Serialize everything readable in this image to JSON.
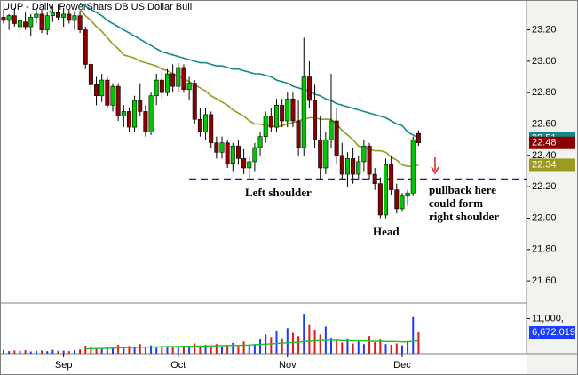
{
  "chart_data": {
    "type": "candlestick",
    "title": "UUP - Daily  PowerShars DB US Dollar Bull",
    "categories": [
      null,
      null,
      null,
      null,
      null,
      null,
      null,
      null,
      null,
      null,
      null,
      "Sep",
      null,
      null,
      null,
      null,
      null,
      null,
      null,
      null,
      null,
      null,
      null,
      null,
      null,
      null,
      null,
      null,
      null,
      null,
      null,
      null,
      "Oct",
      null,
      null,
      null,
      null,
      null,
      null,
      null,
      null,
      null,
      null,
      null,
      null,
      null,
      null,
      null,
      null,
      null,
      null,
      null,
      "Nov",
      null,
      null,
      null,
      null,
      null,
      null,
      null,
      null,
      null,
      null,
      null,
      null,
      null,
      null,
      null,
      null,
      null,
      null,
      null,
      null,
      "Dec",
      null,
      null,
      null
    ],
    "open": [
      23.28,
      23.26,
      23.29,
      23.22,
      23.25,
      23.22,
      23.28,
      23.3,
      23.2,
      23.29,
      23.31,
      23.28,
      23.3,
      23.26,
      23.29,
      23.2,
      22.98,
      22.85,
      22.78,
      22.88,
      22.72,
      22.84,
      22.65,
      22.68,
      22.58,
      22.75,
      22.68,
      22.55,
      22.78,
      22.88,
      22.8,
      22.92,
      22.84,
      22.96,
      22.82,
      22.86,
      22.63,
      22.55,
      22.66,
      22.48,
      22.42,
      22.48,
      22.35,
      22.46,
      22.38,
      22.32,
      22.36,
      22.45,
      22.52,
      22.65,
      22.58,
      22.72,
      22.62,
      22.76,
      22.62,
      22.45,
      22.9,
      22.75,
      22.5,
      22.32,
      22.5,
      22.62,
      22.4,
      22.28,
      22.38,
      22.28,
      22.36,
      22.46,
      22.28,
      22.22,
      22.02,
      22.34,
      22.18,
      22.06,
      22.14,
      22.16,
      22.54
    ],
    "high": [
      23.33,
      23.3,
      23.34,
      23.28,
      23.31,
      23.3,
      23.34,
      23.33,
      23.31,
      23.35,
      23.36,
      23.34,
      23.33,
      23.32,
      23.32,
      23.22,
      23.02,
      22.9,
      22.92,
      22.9,
      22.86,
      22.86,
      22.72,
      22.7,
      22.78,
      22.86,
      22.72,
      22.8,
      22.92,
      22.94,
      22.95,
      22.98,
      22.99,
      22.98,
      22.9,
      22.88,
      22.7,
      22.7,
      22.68,
      22.52,
      22.52,
      22.5,
      22.48,
      22.5,
      22.44,
      22.4,
      22.48,
      22.55,
      22.68,
      22.7,
      22.76,
      22.76,
      22.8,
      22.8,
      22.75,
      23.15,
      23.0,
      22.85,
      22.65,
      22.55,
      22.92,
      22.7,
      22.48,
      22.42,
      22.45,
      22.4,
      22.5,
      22.48,
      22.32,
      22.26,
      22.38,
      22.4,
      22.22,
      22.16,
      22.18,
      22.52,
      22.56
    ],
    "low": [
      23.24,
      23.2,
      23.22,
      23.15,
      23.2,
      23.16,
      23.24,
      23.18,
      23.17,
      23.25,
      23.26,
      23.22,
      23.24,
      23.2,
      23.18,
      22.95,
      22.8,
      22.72,
      22.74,
      22.7,
      22.68,
      22.62,
      22.58,
      22.55,
      22.55,
      22.65,
      22.52,
      22.53,
      22.72,
      22.76,
      22.78,
      22.8,
      22.8,
      22.8,
      22.75,
      22.6,
      22.52,
      22.5,
      22.45,
      22.38,
      22.38,
      22.32,
      22.3,
      22.34,
      22.28,
      22.25,
      22.3,
      22.4,
      22.48,
      22.55,
      22.55,
      22.58,
      22.58,
      22.58,
      22.4,
      22.4,
      22.7,
      22.45,
      22.25,
      22.28,
      22.45,
      22.35,
      22.25,
      22.2,
      22.22,
      22.24,
      22.3,
      22.25,
      22.18,
      22.0,
      22.0,
      22.15,
      22.03,
      22.04,
      22.08,
      22.14,
      22.46
    ],
    "close": [
      23.26,
      23.29,
      23.24,
      23.26,
      23.22,
      23.28,
      23.3,
      23.2,
      23.29,
      23.31,
      23.28,
      23.3,
      23.26,
      23.29,
      23.2,
      22.98,
      22.85,
      22.78,
      22.88,
      22.72,
      22.84,
      22.65,
      22.68,
      22.58,
      22.75,
      22.68,
      22.55,
      22.78,
      22.88,
      22.8,
      22.92,
      22.84,
      22.96,
      22.82,
      22.86,
      22.63,
      22.55,
      22.66,
      22.48,
      22.42,
      22.48,
      22.35,
      22.46,
      22.38,
      22.32,
      22.36,
      22.45,
      22.52,
      22.65,
      22.58,
      22.72,
      22.62,
      22.76,
      22.62,
      22.45,
      22.9,
      22.75,
      22.5,
      22.32,
      22.5,
      22.62,
      22.4,
      22.28,
      22.38,
      22.28,
      22.36,
      22.46,
      22.28,
      22.22,
      22.02,
      22.34,
      22.18,
      22.06,
      22.14,
      22.16,
      22.5,
      22.48
    ],
    "close_last_label": "22.48",
    "up_color": "#00c800",
    "down_color": "#8b0000",
    "ylim": [
      21.465,
      23.39
    ],
    "yticks": [
      {
        "value": 21.6,
        "label": "21.60"
      },
      {
        "value": 21.8,
        "label": "21.80"
      },
      {
        "value": 22.0,
        "label": "22.00"
      },
      {
        "value": 22.2,
        "label": "22.20"
      },
      {
        "value": 22.4,
        "label": "22.40"
      },
      {
        "value": 22.6,
        "label": "22.60"
      },
      {
        "value": 22.8,
        "label": "22.80"
      },
      {
        "value": 23.0,
        "label": "23.00"
      },
      {
        "value": 23.2,
        "label": "23.20"
      }
    ],
    "moving_averages": [
      {
        "color": "#17888a",
        "last_label": "22.51",
        "values": [
          null,
          null,
          null,
          null,
          null,
          null,
          null,
          null,
          null,
          null,
          null,
          null,
          null,
          null,
          23.37,
          23.35,
          23.33,
          23.31,
          23.29,
          23.26,
          23.24,
          23.22,
          23.2,
          23.18,
          23.16,
          23.14,
          23.12,
          23.1,
          23.08,
          23.06,
          23.05,
          23.04,
          23.03,
          23.02,
          23.01,
          23.0,
          22.99,
          22.99,
          22.98,
          22.97,
          22.97,
          22.96,
          22.95,
          22.95,
          22.94,
          22.93,
          22.92,
          22.92,
          22.91,
          22.9,
          22.88,
          22.87,
          22.86,
          22.84,
          22.83,
          22.82,
          22.81,
          22.79,
          22.78,
          22.76,
          22.75,
          22.73,
          22.72,
          22.71,
          22.7,
          22.69,
          22.68,
          22.67,
          22.66,
          22.65,
          22.64,
          22.62,
          22.6,
          22.59,
          22.55,
          22.53,
          22.51
        ]
      },
      {
        "color": "#9a9a1e",
        "last_label": "22.34",
        "values": [
          null,
          null,
          null,
          null,
          null,
          null,
          null,
          null,
          null,
          null,
          null,
          null,
          null,
          null,
          23.33,
          23.29,
          23.26,
          23.22,
          23.19,
          23.15,
          23.11,
          23.08,
          23.04,
          23.03,
          23.02,
          23.0,
          22.99,
          22.98,
          22.97,
          22.95,
          22.94,
          22.92,
          22.9,
          22.89,
          22.87,
          22.85,
          22.83,
          22.81,
          22.78,
          22.76,
          22.74,
          22.72,
          22.69,
          22.67,
          22.65,
          22.62,
          22.6,
          22.6,
          22.59,
          22.59,
          22.58,
          22.59,
          22.6,
          22.61,
          22.62,
          22.63,
          22.64,
          22.64,
          22.63,
          22.63,
          22.63,
          22.6,
          22.56,
          22.53,
          22.5,
          22.46,
          22.45,
          22.44,
          22.43,
          22.43,
          22.42,
          22.39,
          22.37,
          22.34,
          22.33,
          22.33,
          22.34
        ]
      }
    ],
    "neckline": 22.25,
    "annotations": [
      "Left shoulder",
      "Head",
      "pullback here",
      "could form",
      "right shoulder"
    ],
    "volume": {
      "values": [
        1200000,
        800000,
        1000000,
        900000,
        1100000,
        700000,
        900000,
        1000000,
        800000,
        1200000,
        900000,
        1000000,
        800000,
        1100000,
        1300000,
        2500000,
        2000000,
        1800000,
        1500000,
        2200000,
        1600000,
        2800000,
        1900000,
        2400000,
        2000000,
        3000000,
        2200000,
        2600000,
        1800000,
        2400000,
        2000000,
        2200000,
        1900000,
        2500000,
        2000000,
        3200000,
        2400000,
        2800000,
        2100000,
        3000000,
        2200000,
        2600000,
        3400000,
        2400000,
        3800000,
        2600000,
        3000000,
        4500000,
        6000000,
        5200000,
        7000000,
        4800000,
        8000000,
        6500000,
        5500000,
        12500000,
        9000000,
        7500000,
        6000000,
        8500000,
        5000000,
        4200000,
        3500000,
        4800000,
        3200000,
        3800000,
        3000000,
        5500000,
        3600000,
        4400000,
        3000000,
        2800000,
        3200000,
        2600000,
        4000000,
        11500000,
        6672019
      ],
      "last_label": "6,672,019",
      "up_color": "#1a3cff",
      "down_color": "#e01818",
      "ylim": [
        0,
        15300000
      ],
      "yticks": [
        {
          "value": 11000000,
          "label": "11,000,"
        }
      ],
      "ma": {
        "color": "#22c022",
        "values": [
          null,
          null,
          null,
          null,
          null,
          null,
          null,
          null,
          null,
          null,
          null,
          null,
          null,
          null,
          null,
          1500000,
          1550000,
          1600000,
          1650000,
          1700000,
          1750000,
          1800000,
          1850000,
          1900000,
          1950000,
          2000000,
          2050000,
          2100000,
          2100000,
          2150000,
          2200000,
          2200000,
          2250000,
          2300000,
          2300000,
          2350000,
          2400000,
          2400000,
          2450000,
          2500000,
          2500000,
          2550000,
          2600000,
          2600000,
          2650000,
          2700000,
          2800000,
          2900000,
          3000000,
          3100000,
          3200000,
          3300000,
          3400000,
          3500000,
          3600000,
          3800000,
          3900000,
          4000000,
          4100000,
          4200000,
          4200000,
          4200000,
          4100000,
          4100000,
          4000000,
          4000000,
          4000000,
          3900000,
          3900000,
          3900000,
          3800000,
          3800000,
          3800000,
          3700000,
          3700000,
          3900000,
          4000000
        ]
      }
    }
  }
}
